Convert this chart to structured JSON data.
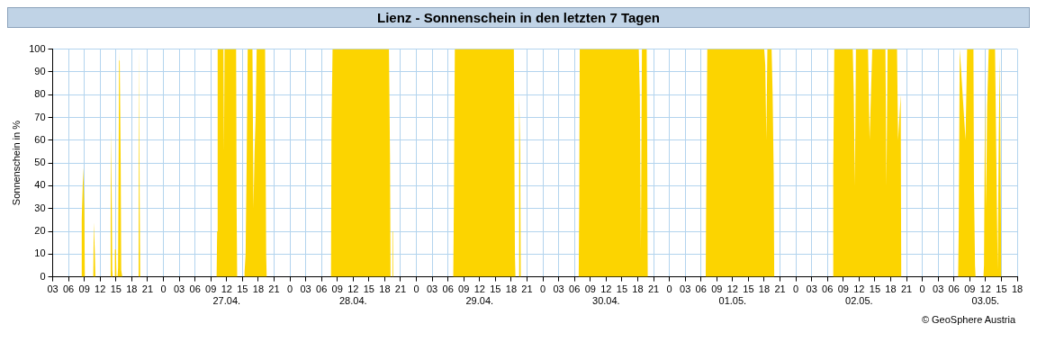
{
  "chart_data": {
    "type": "area",
    "title": "Lienz - Sonnenschein in den letzten 7 Tagen",
    "ylabel": "Sonnenschein in %",
    "annotations": [
      "© GeoSphere Austria"
    ],
    "x": [
      "--04-26T08:24",
      "--04-26T08:30",
      "--04-26T08:48",
      "--04-26T09:00",
      "--04-26T09:06",
      "--04-26T10:42",
      "--04-26T10:48",
      "--04-26T11:00",
      "--04-26T11:06",
      "--04-26T13:54",
      "--04-26T14:00",
      "--04-26T14:06",
      "--04-26T14:18",
      "--04-26T14:24",
      "--04-26T14:42",
      "--04-26T14:48",
      "--04-26T15:00",
      "--04-26T15:06",
      "--04-26T15:18",
      "--04-26T15:24",
      "--04-26T15:36",
      "--04-26T15:42",
      "--04-26T15:54",
      "--04-26T16:00",
      "--04-26T16:12",
      "--04-26T19:12",
      "--04-26T19:18",
      "--04-26T19:24",
      "--04-26T19:30",
      "--04-26T19:36",
      "--04-27T10:06",
      "--04-27T10:12",
      "--04-27T10:18",
      "--04-27T11:24",
      "--04-27T11:30",
      "--04-27T11:36",
      "--04-27T13:48",
      "--04-27T13:54",
      "--04-27T14:00",
      "--04-27T15:18",
      "--04-27T15:24",
      "--04-27T15:36",
      "--04-27T15:48",
      "--04-27T16:00",
      "--04-27T16:54",
      "--04-27T17:06",
      "--04-27T17:18",
      "--04-27T17:30",
      "--04-27T17:42",
      "--04-27T19:18",
      "--04-27T19:30",
      "--04-27T19:36",
      "--04-28T07:48",
      "--04-28T07:54",
      "--04-28T08:06",
      "--04-28T18:48",
      "--04-28T19:00",
      "--04-28T19:06",
      "--04-28T19:24",
      "--04-28T19:27",
      "--04-28T19:33",
      "--04-28T19:36",
      "--04-29T07:00",
      "--04-29T07:06",
      "--04-29T07:18",
      "--04-29T18:30",
      "--04-29T18:42",
      "--04-29T18:48",
      "--04-29T19:24",
      "--04-29T19:30",
      "--04-29T19:42",
      "--04-29T19:48",
      "--04-30T06:48",
      "--04-30T06:54",
      "--04-30T07:00",
      "--04-30T18:12",
      "--04-30T18:24",
      "--04-30T18:36",
      "--04-30T18:48",
      "--04-30T19:42",
      "--04-30T19:48",
      "--04-30T19:54",
      "--05-01T06:54",
      "--05-01T07:00",
      "--05-01T07:12",
      "--05-01T18:00",
      "--05-01T18:12",
      "--05-01T18:24",
      "--05-01T18:36",
      "--05-01T19:24",
      "--05-01T19:36",
      "--05-01T19:48",
      "--05-01T19:54",
      "--05-02T07:00",
      "--05-02T07:06",
      "--05-02T07:18",
      "--05-02T10:48",
      "--05-02T11:00",
      "--05-02T11:12",
      "--05-02T11:24",
      "--05-02T13:42",
      "--05-02T14:00",
      "--05-02T14:30",
      "--05-02T17:00",
      "--05-02T17:12",
      "--05-02T17:24",
      "--05-02T19:12",
      "--05-02T19:24",
      "--05-02T19:54",
      "--05-02T20:00",
      "--05-03T06:48",
      "--05-03T06:54",
      "--05-03T07:06",
      "--05-03T08:12",
      "--05-03T08:30",
      "--05-03T09:42",
      "--05-03T09:48",
      "--05-03T10:00",
      "--05-03T10:06",
      "--05-03T11:36",
      "--05-03T11:42",
      "--05-03T11:54",
      "--05-03T12:06",
      "--05-03T12:18",
      "--05-03T12:36",
      "--05-03T13:48",
      "--05-03T14:00",
      "--05-03T14:18",
      "--05-03T14:30",
      "--05-03T14:42",
      "--05-03T14:54",
      "--05-03T15:00"
    ],
    "series": [
      {
        "color": "#fcd400",
        "values": [
          0,
          25,
          48,
          30,
          0,
          0,
          24,
          10,
          0,
          0,
          25,
          65,
          3,
          0,
          0,
          12,
          12,
          0,
          0,
          4,
          95,
          100,
          50,
          3,
          0,
          0,
          3,
          100,
          35,
          0,
          0,
          20,
          100,
          100,
          55,
          100,
          100,
          30,
          0,
          0,
          2,
          10,
          50,
          100,
          100,
          30,
          55,
          70,
          100,
          100,
          10,
          0,
          0,
          65,
          100,
          100,
          52,
          0,
          0,
          20,
          20,
          0,
          0,
          27,
          100,
          100,
          10,
          0,
          0,
          80,
          55,
          0,
          0,
          33,
          100,
          100,
          80,
          12,
          100,
          100,
          60,
          0,
          0,
          38,
          100,
          100,
          93,
          60,
          100,
          100,
          80,
          45,
          0,
          0,
          47,
          100,
          100,
          80,
          40,
          100,
          100,
          60,
          100,
          100,
          40,
          100,
          100,
          60,
          80,
          0,
          0,
          20,
          100,
          60,
          100,
          100,
          40,
          5,
          0,
          0,
          5,
          80,
          30,
          75,
          100,
          100,
          60,
          3,
          60,
          97,
          30,
          0
        ]
      }
    ],
    "xlim": [
      "--04-26T03:00",
      "--05-03T18:00"
    ],
    "xticks": [
      {
        "value": "--04-26T03:00",
        "label": "03"
      },
      {
        "value": "--04-26T06:00",
        "label": "06"
      },
      {
        "value": "--04-26T09:00",
        "label": "09"
      },
      {
        "value": "--04-26T12:00",
        "label": "12"
      },
      {
        "value": "--04-26T15:00",
        "label": "15"
      },
      {
        "value": "--04-26T18:00",
        "label": "18"
      },
      {
        "value": "--04-26T21:00",
        "label": "21"
      },
      {
        "value": "--04-27T00:00",
        "label": "0"
      },
      {
        "value": "--04-27T03:00",
        "label": "03"
      },
      {
        "value": "--04-27T06:00",
        "label": "06"
      },
      {
        "value": "--04-27T09:00",
        "label": "09"
      },
      {
        "value": "--04-27T12:00",
        "label": "12\n27.04."
      },
      {
        "value": "--04-27T15:00",
        "label": "15"
      },
      {
        "value": "--04-27T18:00",
        "label": "18"
      },
      {
        "value": "--04-27T21:00",
        "label": "21"
      },
      {
        "value": "--04-28T00:00",
        "label": "0"
      },
      {
        "value": "--04-28T03:00",
        "label": "03"
      },
      {
        "value": "--04-28T06:00",
        "label": "06"
      },
      {
        "value": "--04-28T09:00",
        "label": "09"
      },
      {
        "value": "--04-28T12:00",
        "label": "12\n28.04."
      },
      {
        "value": "--04-28T15:00",
        "label": "15"
      },
      {
        "value": "--04-28T18:00",
        "label": "18"
      },
      {
        "value": "--04-28T21:00",
        "label": "21"
      },
      {
        "value": "--04-29T00:00",
        "label": "0"
      },
      {
        "value": "--04-29T03:00",
        "label": "03"
      },
      {
        "value": "--04-29T06:00",
        "label": "06"
      },
      {
        "value": "--04-29T09:00",
        "label": "09"
      },
      {
        "value": "--04-29T12:00",
        "label": "12\n29.04."
      },
      {
        "value": "--04-29T15:00",
        "label": "15"
      },
      {
        "value": "--04-29T18:00",
        "label": "18"
      },
      {
        "value": "--04-29T21:00",
        "label": "21"
      },
      {
        "value": "--04-30T00:00",
        "label": "0"
      },
      {
        "value": "--04-30T03:00",
        "label": "03"
      },
      {
        "value": "--04-30T06:00",
        "label": "06"
      },
      {
        "value": "--04-30T09:00",
        "label": "09"
      },
      {
        "value": "--04-30T12:00",
        "label": "12\n30.04."
      },
      {
        "value": "--04-30T15:00",
        "label": "15"
      },
      {
        "value": "--04-30T18:00",
        "label": "18"
      },
      {
        "value": "--04-30T21:00",
        "label": "21"
      },
      {
        "value": "--05-01T00:00",
        "label": "0"
      },
      {
        "value": "--05-01T03:00",
        "label": "03"
      },
      {
        "value": "--05-01T06:00",
        "label": "06"
      },
      {
        "value": "--05-01T09:00",
        "label": "09"
      },
      {
        "value": "--05-01T12:00",
        "label": "12\n01.05."
      },
      {
        "value": "--05-01T15:00",
        "label": "15"
      },
      {
        "value": "--05-01T18:00",
        "label": "18"
      },
      {
        "value": "--05-01T21:00",
        "label": "21"
      },
      {
        "value": "--05-02T00:00",
        "label": "0"
      },
      {
        "value": "--05-02T03:00",
        "label": "03"
      },
      {
        "value": "--05-02T06:00",
        "label": "06"
      },
      {
        "value": "--05-02T09:00",
        "label": "09"
      },
      {
        "value": "--05-02T12:00",
        "label": "12\n02.05."
      },
      {
        "value": "--05-02T15:00",
        "label": "15"
      },
      {
        "value": "--05-02T18:00",
        "label": "18"
      },
      {
        "value": "--05-02T21:00",
        "label": "21"
      },
      {
        "value": "--05-03T00:00",
        "label": "0"
      },
      {
        "value": "--05-03T03:00",
        "label": "03"
      },
      {
        "value": "--05-03T06:00",
        "label": "06"
      },
      {
        "value": "--05-03T09:00",
        "label": "09"
      },
      {
        "value": "--05-03T12:00",
        "label": "12\n03.05."
      },
      {
        "value": "--05-03T15:00",
        "label": "15"
      },
      {
        "value": "--05-03T18:00",
        "label": "18"
      }
    ],
    "ylim": [
      0,
      100
    ],
    "yticks": [
      0,
      10,
      20,
      30,
      40,
      50,
      60,
      70,
      80,
      90,
      100
    ],
    "grid": true,
    "legend": false
  }
}
